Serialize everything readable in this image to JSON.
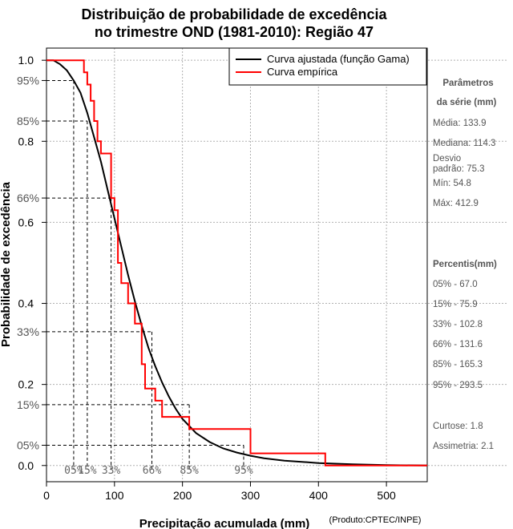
{
  "chart_data": {
    "type": "line",
    "title": [
      "Distribuição de probabilidade de excedência",
      "no trimestre OND (1981-2010): Região 47"
    ],
    "xlabel": "Precipitação acumulada (mm)",
    "ylabel": "Probabilidade de excedência",
    "credit": "(Produto:CPTEC/INPE)",
    "xlim": [
      0,
      560
    ],
    "ylim": [
      -0.04,
      1.03
    ],
    "x_ticks": [
      0,
      100,
      200,
      300,
      400,
      500
    ],
    "y_ticks": [
      {
        "value": 1.0,
        "label": "1.0"
      },
      {
        "value": 0.8,
        "label": "0.8"
      },
      {
        "value": 0.6,
        "label": "0.6"
      },
      {
        "value": 0.4,
        "label": "0.4"
      },
      {
        "value": 0.2,
        "label": "0.2"
      },
      {
        "value": 0.0,
        "label": "0.0"
      }
    ],
    "y_marks": [
      {
        "value": 0.95,
        "label": "95%"
      },
      {
        "value": 0.85,
        "label": "85%"
      },
      {
        "value": 0.66,
        "label": "66%"
      },
      {
        "value": 0.33,
        "label": "33%"
      },
      {
        "value": 0.15,
        "label": "15%"
      },
      {
        "value": 0.05,
        "label": "05%"
      }
    ],
    "percentile_lines": [
      {
        "x": 40,
        "y": 0.95,
        "label": "05%"
      },
      {
        "x": 60,
        "y": 0.85,
        "label": "15%"
      },
      {
        "x": 95,
        "y": 0.66,
        "label": "33%"
      },
      {
        "x": 155,
        "y": 0.33,
        "label": "66%"
      },
      {
        "x": 210,
        "y": 0.15,
        "label": "85%"
      },
      {
        "x": 290,
        "y": 0.05,
        "label": "95%"
      }
    ],
    "series": [
      {
        "name": "Curva ajustada (função Gama)",
        "color": "#000000",
        "x": [
          0,
          10,
          20,
          30,
          40,
          50,
          60,
          70,
          80,
          90,
          100,
          110,
          120,
          130,
          140,
          150,
          160,
          170,
          180,
          190,
          200,
          220,
          240,
          260,
          280,
          300,
          320,
          350,
          400,
          450,
          500,
          560
        ],
        "y": [
          1.0,
          1.0,
          0.99,
          0.975,
          0.95,
          0.92,
          0.87,
          0.81,
          0.75,
          0.68,
          0.61,
          0.54,
          0.47,
          0.405,
          0.345,
          0.29,
          0.245,
          0.205,
          0.17,
          0.14,
          0.115,
          0.08,
          0.058,
          0.042,
          0.032,
          0.024,
          0.018,
          0.012,
          0.006,
          0.003,
          0.001,
          0.0
        ]
      },
      {
        "name": "Curva empírica",
        "color": "#ff0000",
        "steps": [
          [
            0,
            1.0
          ],
          [
            55,
            1.0
          ],
          [
            55,
            0.97
          ],
          [
            60,
            0.97
          ],
          [
            60,
            0.94
          ],
          [
            65,
            0.94
          ],
          [
            65,
            0.9
          ],
          [
            70,
            0.9
          ],
          [
            70,
            0.85
          ],
          [
            75,
            0.85
          ],
          [
            75,
            0.8
          ],
          [
            80,
            0.8
          ],
          [
            80,
            0.77
          ],
          [
            95,
            0.77
          ],
          [
            95,
            0.66
          ],
          [
            100,
            0.66
          ],
          [
            100,
            0.63
          ],
          [
            105,
            0.63
          ],
          [
            105,
            0.5
          ],
          [
            110,
            0.5
          ],
          [
            110,
            0.45
          ],
          [
            120,
            0.45
          ],
          [
            120,
            0.4
          ],
          [
            130,
            0.4
          ],
          [
            130,
            0.35
          ],
          [
            140,
            0.35
          ],
          [
            140,
            0.25
          ],
          [
            145,
            0.25
          ],
          [
            145,
            0.19
          ],
          [
            160,
            0.19
          ],
          [
            160,
            0.16
          ],
          [
            170,
            0.16
          ],
          [
            170,
            0.12
          ],
          [
            210,
            0.12
          ],
          [
            210,
            0.09
          ],
          [
            300,
            0.09
          ],
          [
            300,
            0.03
          ],
          [
            410,
            0.03
          ],
          [
            410,
            0.0
          ],
          [
            560,
            0.0
          ]
        ]
      }
    ],
    "legend_position": "top-right"
  },
  "side_panel": {
    "params_title": [
      "Parâmetros",
      "da série (mm)"
    ],
    "params": [
      "Média: 133.9",
      "Mediana: 114.3",
      "Desvio",
      "padrão: 75.3",
      "Mín: 54.8",
      "Máx: 412.9"
    ],
    "percentis_title": "Percentis(mm)",
    "percentis": [
      "05% - 67.0",
      "15% - 75.9",
      "33% - 102.8",
      "66% - 131.6",
      "85% - 165.3",
      "95% - 293.5"
    ],
    "extra": [
      "Curtose: 1.8",
      "Assimetria: 2.1"
    ]
  }
}
